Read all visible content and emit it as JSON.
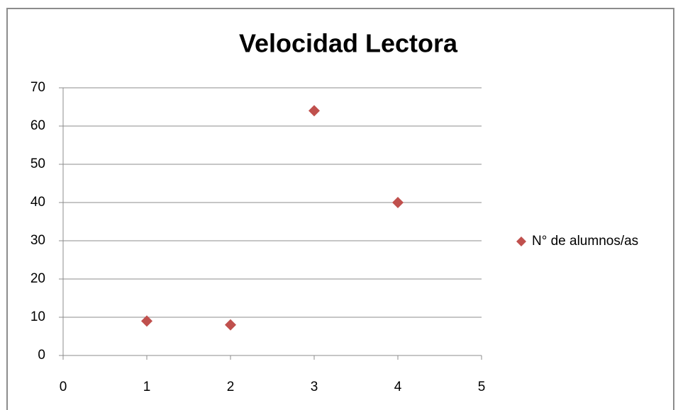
{
  "chart_data": {
    "type": "scatter",
    "title": "Velocidad Lectora",
    "series": [
      {
        "name": "N° de alumnos/as",
        "color": "#c0504d",
        "x": [
          1,
          2,
          3,
          4
        ],
        "values": [
          9,
          8,
          64,
          40
        ]
      }
    ],
    "xlim": [
      0,
      5
    ],
    "xticks": [
      0,
      1,
      2,
      3,
      4,
      5
    ],
    "ylim": [
      0,
      70
    ],
    "yticks": [
      0,
      10,
      20,
      30,
      40,
      50,
      60,
      70
    ],
    "grid": true,
    "legend": "right"
  }
}
